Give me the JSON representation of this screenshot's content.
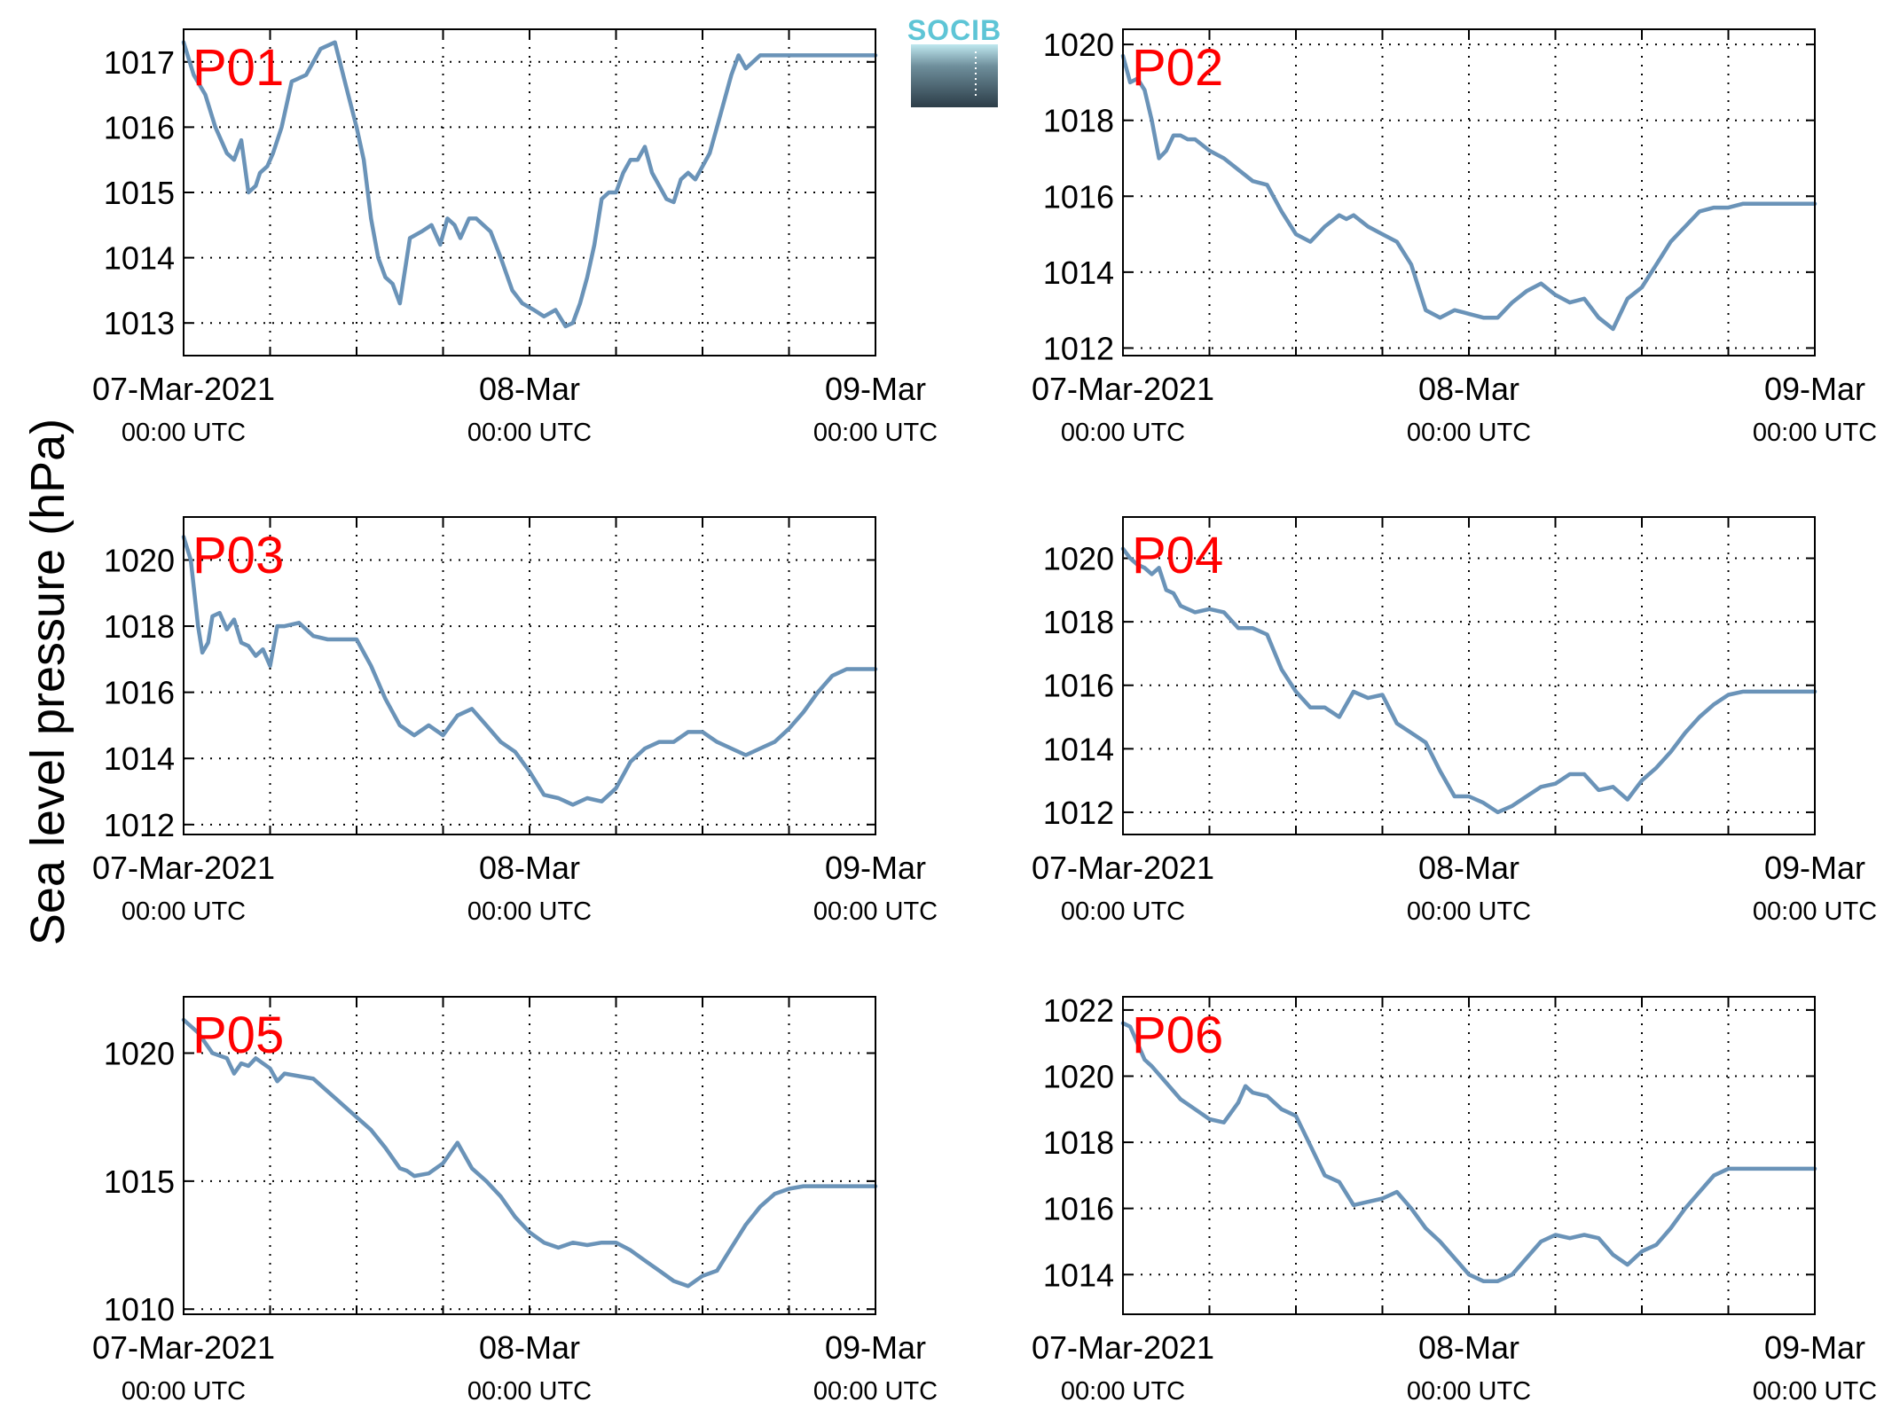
{
  "figure": {
    "ylabel": "Sea level pressure (hPa)",
    "logo_text": "SOCIB",
    "colors": {
      "series": "#6a93b8",
      "label": "#ff0000",
      "logo_top": "#5ec5d6",
      "logo_bottom": "#2c3d48"
    }
  },
  "chart_data": [
    {
      "type": "line",
      "panel": "P01",
      "x_unit": "hours since 07-Mar-2021 00:00 UTC",
      "xlim": [
        0,
        48
      ],
      "ylim": [
        1012.5,
        1017.5
      ],
      "yticks": [
        1013,
        1014,
        1015,
        1016,
        1017
      ],
      "xtick_labels": [
        [
          "07-Mar-2021",
          "00:00 UTC"
        ],
        [
          "08-Mar",
          "00:00 UTC"
        ],
        [
          "09-Mar",
          "00:00 UTC"
        ]
      ],
      "x": [
        0,
        0.7,
        1.5,
        2.2,
        3,
        3.5,
        4,
        4.5,
        5,
        5.3,
        5.8,
        6.2,
        6.8,
        7.5,
        8.5,
        9.5,
        10.5,
        11.3,
        12,
        12.5,
        13,
        13.5,
        14,
        14.5,
        15,
        15.7,
        16.5,
        17.2,
        17.8,
        18.3,
        18.8,
        19.2,
        19.8,
        20.3,
        20.8,
        21.3,
        22,
        22.8,
        23.5,
        24.3,
        25,
        25.8,
        26.5,
        27,
        27.5,
        28,
        28.5,
        29,
        29.5,
        30,
        30.5,
        31,
        31.5,
        32,
        32.5,
        33,
        33.5,
        34,
        34.5,
        35,
        35.5,
        36,
        36.5,
        37,
        37.5,
        38,
        38.5,
        39,
        39.5,
        40,
        40.5,
        41,
        41.5,
        42,
        42.5,
        43,
        43.5,
        44,
        44.5,
        45,
        45.5,
        46,
        46.5,
        47,
        47.5,
        48
      ],
      "y": [
        1017.3,
        1016.8,
        1016.5,
        1016.0,
        1015.6,
        1015.5,
        1015.8,
        1015.0,
        1015.1,
        1015.3,
        1015.4,
        1015.6,
        1016.0,
        1016.7,
        1016.8,
        1017.2,
        1017.3,
        1016.6,
        1016.0,
        1015.5,
        1014.6,
        1014.0,
        1013.7,
        1013.6,
        1013.3,
        1014.3,
        1014.4,
        1014.5,
        1014.2,
        1014.6,
        1014.5,
        1014.3,
        1014.6,
        1014.6,
        1014.5,
        1014.4,
        1014.0,
        1013.5,
        1013.3,
        1013.2,
        1013.1,
        1013.2,
        1012.95,
        1013.0,
        1013.3,
        1013.7,
        1014.2,
        1014.9,
        1015.0,
        1015.0,
        1015.3,
        1015.5,
        1015.5,
        1015.7,
        1015.3,
        1015.1,
        1014.9,
        1014.85,
        1015.2,
        1015.3,
        1015.2,
        1015.4,
        1015.6,
        1016.0,
        1016.4,
        1016.8,
        1017.1,
        1016.9,
        1017.0,
        1017.1,
        1017.1,
        1017.1,
        1017.1,
        1017.1,
        1017.1,
        1017.1,
        1017.1,
        1017.1,
        1017.1,
        1017.1,
        1017.1,
        1017.1,
        1017.1,
        1017.1,
        1017.1,
        1017.1
      ]
    },
    {
      "type": "line",
      "panel": "P02",
      "x_unit": "hours since 07-Mar-2021 00:00 UTC",
      "xlim": [
        0,
        48
      ],
      "ylim": [
        1011.8,
        1020.4
      ],
      "yticks": [
        1012,
        1014,
        1016,
        1018,
        1020
      ],
      "xtick_labels": [
        [
          "07-Mar-2021",
          "00:00 UTC"
        ],
        [
          "08-Mar",
          "00:00 UTC"
        ],
        [
          "09-Mar",
          "00:00 UTC"
        ]
      ],
      "x": [
        0,
        0.5,
        1,
        1.5,
        2,
        2.5,
        3,
        3.5,
        4,
        4.5,
        5,
        6,
        7,
        8,
        9,
        10,
        11,
        12,
        13,
        13.5,
        14,
        15,
        15.5,
        16,
        17,
        18,
        19,
        20,
        21,
        22,
        23,
        24,
        25,
        26,
        27,
        28,
        29,
        30,
        31,
        32,
        33,
        34,
        35,
        36,
        37,
        37.5,
        38,
        39,
        40,
        41,
        42,
        43,
        44,
        45,
        46,
        47,
        48
      ],
      "y": [
        1019.7,
        1019.0,
        1019.1,
        1018.8,
        1018.0,
        1017.0,
        1017.2,
        1017.6,
        1017.6,
        1017.5,
        1017.5,
        1017.2,
        1017.0,
        1016.7,
        1016.4,
        1016.3,
        1015.6,
        1015.0,
        1014.8,
        1015.0,
        1015.2,
        1015.5,
        1015.4,
        1015.5,
        1015.2,
        1015.0,
        1014.8,
        1014.2,
        1013.0,
        1012.8,
        1013.0,
        1012.9,
        1012.8,
        1012.8,
        1013.2,
        1013.5,
        1013.7,
        1013.4,
        1013.2,
        1013.3,
        1012.8,
        1012.5,
        1013.3,
        1013.6,
        1014.2,
        1014.5,
        1014.8,
        1015.2,
        1015.6,
        1015.7,
        1015.7,
        1015.8,
        1015.8,
        1015.8,
        1015.8,
        1015.8,
        1015.8
      ]
    },
    {
      "type": "line",
      "panel": "P03",
      "x_unit": "hours since 07-Mar-2021 00:00 UTC",
      "xlim": [
        0,
        48
      ],
      "ylim": [
        1011.7,
        1021.3
      ],
      "yticks": [
        1012,
        1014,
        1016,
        1018,
        1020
      ],
      "xtick_labels": [
        [
          "07-Mar-2021",
          "00:00 UTC"
        ],
        [
          "08-Mar",
          "00:00 UTC"
        ],
        [
          "09-Mar",
          "00:00 UTC"
        ]
      ],
      "x": [
        0,
        0.5,
        1,
        1.3,
        1.7,
        2,
        2.5,
        3,
        3.5,
        4,
        4.5,
        5,
        5.5,
        6,
        6.5,
        7,
        8,
        9,
        10,
        11,
        12,
        13,
        14,
        15,
        16,
        17,
        18,
        19,
        20,
        21,
        22,
        23,
        24,
        25,
        26,
        27,
        28,
        29,
        30,
        31,
        32,
        33,
        34,
        35,
        36,
        37,
        38,
        39,
        40,
        41,
        42,
        43,
        44,
        45,
        46,
        47,
        48
      ],
      "y": [
        1020.7,
        1020.0,
        1018.0,
        1017.2,
        1017.5,
        1018.3,
        1018.4,
        1017.9,
        1018.2,
        1017.5,
        1017.4,
        1017.1,
        1017.3,
        1016.8,
        1018.0,
        1018.0,
        1018.1,
        1017.7,
        1017.6,
        1017.6,
        1017.6,
        1016.8,
        1015.8,
        1015.0,
        1014.7,
        1015.0,
        1014.7,
        1015.3,
        1015.5,
        1015.0,
        1014.5,
        1014.2,
        1013.6,
        1012.9,
        1012.8,
        1012.6,
        1012.8,
        1012.7,
        1013.1,
        1013.9,
        1014.3,
        1014.5,
        1014.5,
        1014.8,
        1014.8,
        1014.5,
        1014.3,
        1014.1,
        1014.3,
        1014.5,
        1014.9,
        1015.4,
        1016.0,
        1016.5,
        1016.7,
        1016.7,
        1016.7
      ]
    },
    {
      "type": "line",
      "panel": "P04",
      "x_unit": "hours since 07-Mar-2021 00:00 UTC",
      "xlim": [
        0,
        48
      ],
      "ylim": [
        1011.3,
        1021.3
      ],
      "yticks": [
        1012,
        1014,
        1016,
        1018,
        1020
      ],
      "xtick_labels": [
        [
          "07-Mar-2021",
          "00:00 UTC"
        ],
        [
          "08-Mar",
          "00:00 UTC"
        ],
        [
          "09-Mar",
          "00:00 UTC"
        ]
      ],
      "x": [
        0,
        0.5,
        1,
        1.5,
        2,
        2.5,
        3,
        3.5,
        4,
        5,
        6,
        7,
        8,
        9,
        10,
        11,
        12,
        13,
        14,
        15,
        16,
        17,
        18,
        19,
        20,
        21,
        22,
        23,
        24,
        25,
        26,
        27,
        28,
        29,
        30,
        31,
        32,
        33,
        34,
        35,
        36,
        37,
        38,
        39,
        40,
        41,
        42,
        43,
        44,
        45,
        46,
        47,
        48
      ],
      "y": [
        1020.3,
        1020.0,
        1019.8,
        1019.7,
        1019.5,
        1019.7,
        1019.0,
        1018.9,
        1018.5,
        1018.3,
        1018.4,
        1018.3,
        1017.8,
        1017.8,
        1017.6,
        1016.5,
        1015.8,
        1015.3,
        1015.3,
        1015.0,
        1015.8,
        1015.6,
        1015.7,
        1014.8,
        1014.5,
        1014.2,
        1013.3,
        1012.5,
        1012.5,
        1012.3,
        1012.0,
        1012.2,
        1012.5,
        1012.8,
        1012.9,
        1013.2,
        1013.2,
        1012.7,
        1012.8,
        1012.4,
        1013.0,
        1013.4,
        1013.9,
        1014.5,
        1015.0,
        1015.4,
        1015.7,
        1015.8,
        1015.8,
        1015.8,
        1015.8,
        1015.8,
        1015.8
      ]
    },
    {
      "type": "line",
      "panel": "P05",
      "x_unit": "hours since 07-Mar-2021 00:00 UTC",
      "xlim": [
        0,
        48
      ],
      "ylim": [
        1009.8,
        1022.2
      ],
      "yticks": [
        1010,
        1015,
        1020
      ],
      "xtick_labels": [
        [
          "07-Mar-2021",
          "00:00 UTC"
        ],
        [
          "08-Mar",
          "00:00 UTC"
        ],
        [
          "09-Mar",
          "00:00 UTC"
        ]
      ],
      "x": [
        0,
        1,
        2,
        3,
        3.5,
        4,
        4.5,
        5,
        5.5,
        6,
        6.5,
        7,
        8,
        9,
        10,
        11,
        12,
        13,
        14,
        15,
        15.5,
        16,
        17,
        18,
        19,
        20,
        21,
        22,
        23,
        24,
        25,
        26,
        27,
        28,
        29,
        30,
        31,
        32,
        33,
        34,
        35,
        36,
        37,
        38,
        39,
        40,
        41,
        42,
        43,
        44,
        45,
        46,
        47,
        48
      ],
      "y": [
        1021.3,
        1020.8,
        1020.0,
        1019.8,
        1019.2,
        1019.6,
        1019.5,
        1019.8,
        1019.6,
        1019.4,
        1018.9,
        1019.2,
        1019.1,
        1019.0,
        1018.5,
        1018.0,
        1017.5,
        1017.0,
        1016.3,
        1015.5,
        1015.4,
        1015.2,
        1015.3,
        1015.7,
        1016.5,
        1015.5,
        1015.0,
        1014.4,
        1013.6,
        1013.0,
        1012.6,
        1012.4,
        1012.6,
        1012.5,
        1012.6,
        1012.6,
        1012.3,
        1011.9,
        1011.5,
        1011.1,
        1010.9,
        1011.3,
        1011.5,
        1012.4,
        1013.3,
        1014.0,
        1014.5,
        1014.7,
        1014.8,
        1014.8,
        1014.8,
        1014.8,
        1014.8,
        1014.8
      ]
    },
    {
      "type": "line",
      "panel": "P06",
      "x_unit": "hours since 07-Mar-2021 00:00 UTC",
      "xlim": [
        0,
        48
      ],
      "ylim": [
        1012.8,
        1022.4
      ],
      "yticks": [
        1014,
        1016,
        1018,
        1020,
        1022
      ],
      "xtick_labels": [
        [
          "07-Mar-2021",
          "00:00 UTC"
        ],
        [
          "08-Mar",
          "00:00 UTC"
        ],
        [
          "09-Mar",
          "00:00 UTC"
        ]
      ],
      "x": [
        0,
        0.5,
        1,
        1.5,
        2,
        3,
        4,
        5,
        6,
        7,
        8,
        8.5,
        9,
        10,
        11,
        12,
        13,
        14,
        15,
        16,
        17,
        18,
        19,
        20,
        21,
        22,
        23,
        24,
        25,
        26,
        27,
        28,
        29,
        30,
        31,
        32,
        33,
        34,
        35,
        36,
        37,
        38,
        39,
        40,
        41,
        42,
        43,
        44,
        45,
        46,
        47,
        48
      ],
      "y": [
        1021.6,
        1021.5,
        1021.0,
        1020.5,
        1020.3,
        1019.8,
        1019.3,
        1019.0,
        1018.7,
        1018.6,
        1019.2,
        1019.7,
        1019.5,
        1019.4,
        1019.0,
        1018.8,
        1017.9,
        1017.0,
        1016.8,
        1016.1,
        1016.2,
        1016.3,
        1016.5,
        1016.0,
        1015.4,
        1015.0,
        1014.5,
        1014.0,
        1013.8,
        1013.8,
        1014.0,
        1014.5,
        1015.0,
        1015.2,
        1015.1,
        1015.2,
        1015.1,
        1014.6,
        1014.3,
        1014.7,
        1014.9,
        1015.4,
        1016.0,
        1016.5,
        1017.0,
        1017.2,
        1017.2,
        1017.2,
        1017.2,
        1017.2,
        1017.2,
        1017.2
      ]
    }
  ]
}
